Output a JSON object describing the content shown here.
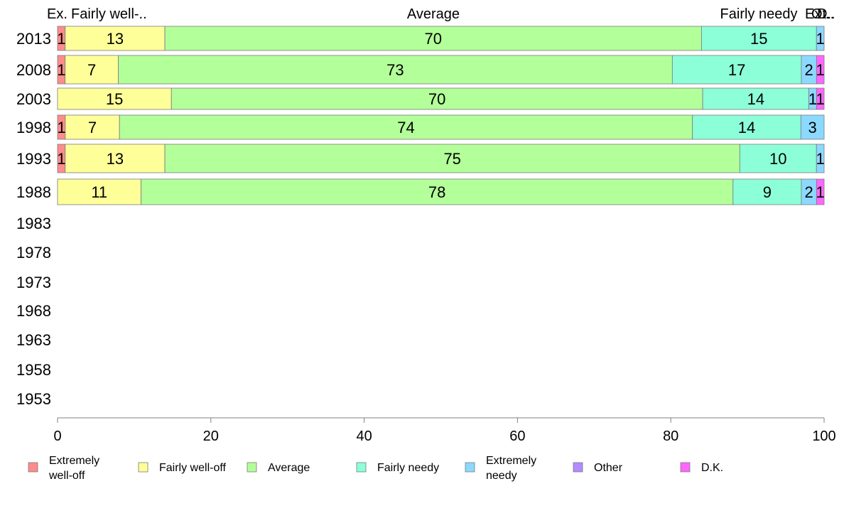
{
  "chart_data": {
    "type": "bar",
    "orientation": "horizontal",
    "stacked": true,
    "categories": [
      "2013",
      "2008",
      "2003",
      "1998",
      "1993",
      "1988",
      "1983",
      "1978",
      "1973",
      "1968",
      "1963",
      "1958",
      "1953"
    ],
    "series": [
      {
        "name": "Extremely well-off",
        "legend_lines": [
          "Extremely",
          "well-off"
        ],
        "color": "#ff8c8c",
        "values": [
          1,
          1,
          0,
          1,
          1,
          0,
          null,
          null,
          null,
          null,
          null,
          null,
          null
        ]
      },
      {
        "name": "Fairly well-off",
        "legend_lines": [
          "Fairly well-off"
        ],
        "color": "#ffff99",
        "values": [
          13,
          7,
          15,
          7,
          13,
          11,
          null,
          null,
          null,
          null,
          null,
          null,
          null
        ]
      },
      {
        "name": "Average",
        "legend_lines": [
          "Average"
        ],
        "color": "#b3ff99",
        "values": [
          70,
          73,
          70,
          74,
          75,
          78,
          null,
          null,
          null,
          null,
          null,
          null,
          null
        ]
      },
      {
        "name": "Fairly needy",
        "legend_lines": [
          "Fairly needy"
        ],
        "color": "#8cffd9",
        "values": [
          15,
          17,
          14,
          14,
          10,
          9,
          null,
          null,
          null,
          null,
          null,
          null,
          null
        ]
      },
      {
        "name": "Extremely needy",
        "legend_lines": [
          "Extremely",
          "needy"
        ],
        "color": "#8cd9ff",
        "values": [
          1,
          2,
          1,
          3,
          1,
          2,
          null,
          null,
          null,
          null,
          null,
          null,
          null
        ]
      },
      {
        "name": "Other",
        "legend_lines": [
          "Other"
        ],
        "color": "#b38cff",
        "values": [
          0,
          0,
          0,
          0,
          0,
          0,
          null,
          null,
          null,
          null,
          null,
          null,
          null
        ]
      },
      {
        "name": "D.K.",
        "legend_lines": [
          "D.K."
        ],
        "color": "#ff66ff",
        "values": [
          0,
          1,
          1,
          0,
          0,
          1,
          null,
          null,
          null,
          null,
          null,
          null,
          null
        ]
      }
    ],
    "segment_labels": [
      [
        "1",
        "13",
        "70",
        "15",
        "1",
        "",
        ""
      ],
      [
        "1",
        "7",
        "73",
        "17",
        "2",
        "",
        "1"
      ],
      [
        "",
        "15",
        "70",
        "14",
        "1",
        "",
        "1"
      ],
      [
        "1",
        "7",
        "74",
        "14",
        "3",
        "",
        ""
      ],
      [
        "1",
        "13",
        "75",
        "10",
        "1",
        "",
        ""
      ],
      [
        "",
        "11",
        "78",
        "9",
        "2",
        "",
        "1"
      ],
      [],
      [],
      [],
      [],
      [],
      [],
      []
    ],
    "top_labels": [
      "Ex.",
      "Fairly well-..",
      "Average",
      "Fairly needy",
      "Ex..",
      "Ot..",
      "D.."
    ],
    "xlim": [
      0,
      100
    ],
    "xticks": [
      0,
      20,
      40,
      60,
      80,
      100
    ],
    "xtick_labels": [
      "0",
      "20",
      "40",
      "60",
      "80",
      "100"
    ],
    "legend_position": "bottom",
    "grid": false
  }
}
